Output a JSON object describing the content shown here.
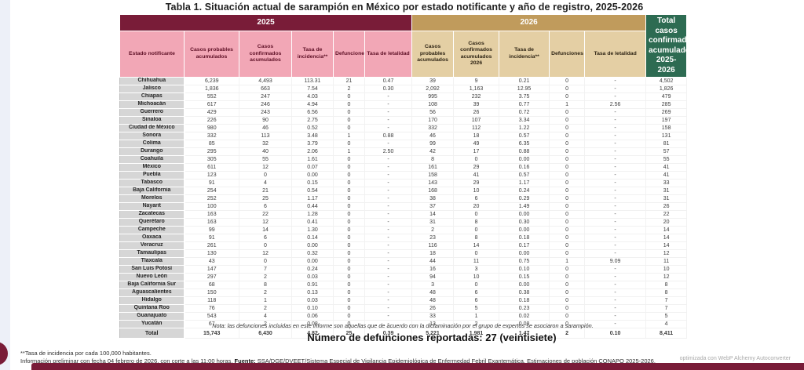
{
  "title": "Tabla 1. Situación actual de sarampión en México por estado notificante y año de registro, 2025-2026",
  "colors": {
    "maroon": "#791c38",
    "pink": "#f2a7b6",
    "tan": "#c09b5c",
    "tan_light": "#e4cfa4",
    "green": "#2d6b52",
    "gray_cell": "#d6d6d6"
  },
  "table": {
    "year_2025": "2025",
    "year_2026": "2026",
    "total_header": "Total casos confirmados acumulados 2025-2026",
    "col_headers": {
      "estado": "Estado notificante",
      "probables": "Casos probables acumulados",
      "confirmados": "Casos confirmados acumulados",
      "incidencia": "Tasa de incidencia**",
      "defunciones": "Defunciones",
      "letalidad": "Tasa de letalidad",
      "probables_2026": "Casos probables acumulados",
      "confirmados_2026": "Casos confirmados acumulados 2026",
      "incidencia_2026": "Tasa de incidencia**",
      "defunciones_2026": "Defunciones",
      "letalidad_2026": "Tasa de letalidad"
    },
    "rows": [
      {
        "estado": "Chihuahua",
        "c": [
          "6,239",
          "4,493",
          "113.31",
          "21",
          "0.47",
          "39",
          "9",
          "0.21",
          "0",
          "-",
          "4,502"
        ]
      },
      {
        "estado": "Jalisco",
        "c": [
          "1,836",
          "663",
          "7.54",
          "2",
          "0.30",
          "2,092",
          "1,163",
          "12.95",
          "0",
          "-",
          "1,826"
        ]
      },
      {
        "estado": "Chiapas",
        "c": [
          "552",
          "247",
          "4.03",
          "0",
          "-",
          "995",
          "232",
          "3.75",
          "0",
          "-",
          "479"
        ]
      },
      {
        "estado": "Michoacán",
        "c": [
          "617",
          "246",
          "4.94",
          "0",
          "-",
          "108",
          "39",
          "0.77",
          "1",
          "2.56",
          "285"
        ]
      },
      {
        "estado": "Guerrero",
        "c": [
          "429",
          "243",
          "6.56",
          "0",
          "-",
          "56",
          "26",
          "0.72",
          "0",
          "-",
          "269"
        ]
      },
      {
        "estado": "Sinaloa",
        "c": [
          "226",
          "90",
          "2.75",
          "0",
          "-",
          "170",
          "107",
          "3.34",
          "0",
          "-",
          "197"
        ]
      },
      {
        "estado": "Ciudad de México",
        "c": [
          "980",
          "46",
          "0.52",
          "0",
          "-",
          "332",
          "112",
          "1.22",
          "0",
          "-",
          "158"
        ]
      },
      {
        "estado": "Sonora",
        "c": [
          "332",
          "113",
          "3.48",
          "1",
          "0.88",
          "46",
          "18",
          "0.57",
          "0",
          "-",
          "131"
        ]
      },
      {
        "estado": "Colima",
        "c": [
          "85",
          "32",
          "3.79",
          "0",
          "-",
          "99",
          "49",
          "6.35",
          "0",
          "-",
          "81"
        ]
      },
      {
        "estado": "Durango",
        "c": [
          "295",
          "40",
          "2.06",
          "1",
          "2.50",
          "42",
          "17",
          "0.88",
          "0",
          "-",
          "57"
        ]
      },
      {
        "estado": "Coahuila",
        "c": [
          "305",
          "55",
          "1.61",
          "0",
          "-",
          "8",
          "0",
          "0.00",
          "0",
          "-",
          "55"
        ]
      },
      {
        "estado": "México",
        "c": [
          "611",
          "12",
          "0.07",
          "0",
          "-",
          "161",
          "29",
          "0.16",
          "0",
          "-",
          "41"
        ]
      },
      {
        "estado": "Puebla",
        "c": [
          "123",
          "0",
          "0.00",
          "0",
          "-",
          "158",
          "41",
          "0.57",
          "0",
          "-",
          "41"
        ]
      },
      {
        "estado": "Tabasco",
        "c": [
          "91",
          "4",
          "0.15",
          "0",
          "-",
          "143",
          "29",
          "1.17",
          "0",
          "-",
          "33"
        ]
      },
      {
        "estado": "Baja California",
        "c": [
          "254",
          "21",
          "0.54",
          "0",
          "-",
          "168",
          "10",
          "0.24",
          "0",
          "-",
          "31"
        ]
      },
      {
        "estado": "Morelos",
        "c": [
          "252",
          "25",
          "1.17",
          "0",
          "-",
          "38",
          "6",
          "0.29",
          "0",
          "-",
          "31"
        ]
      },
      {
        "estado": "Nayarit",
        "c": [
          "100",
          "6",
          "0.44",
          "0",
          "-",
          "37",
          "20",
          "1.49",
          "0",
          "-",
          "26"
        ]
      },
      {
        "estado": "Zacatecas",
        "c": [
          "163",
          "22",
          "1.28",
          "0",
          "-",
          "14",
          "0",
          "0.00",
          "0",
          "-",
          "22"
        ]
      },
      {
        "estado": "Querétaro",
        "c": [
          "163",
          "12",
          "0.41",
          "0",
          "-",
          "31",
          "8",
          "0.30",
          "0",
          "-",
          "20"
        ]
      },
      {
        "estado": "Campeche",
        "c": [
          "99",
          "14",
          "1.30",
          "0",
          "-",
          "2",
          "0",
          "0.00",
          "0",
          "-",
          "14"
        ]
      },
      {
        "estado": "Oaxaca",
        "c": [
          "91",
          "6",
          "0.14",
          "0",
          "-",
          "23",
          "8",
          "0.18",
          "0",
          "-",
          "14"
        ]
      },
      {
        "estado": "Veracruz",
        "c": [
          "261",
          "0",
          "0.00",
          "0",
          "-",
          "116",
          "14",
          "0.17",
          "0",
          "-",
          "14"
        ]
      },
      {
        "estado": "Tamaulipas",
        "c": [
          "130",
          "12",
          "0.32",
          "0",
          "-",
          "18",
          "0",
          "0.00",
          "0",
          "-",
          "12"
        ]
      },
      {
        "estado": "Tlaxcala",
        "c": [
          "43",
          "0",
          "0.00",
          "0",
          "-",
          "44",
          "11",
          "0.75",
          "1",
          "9.09",
          "11"
        ]
      },
      {
        "estado": "San Luis Potosí",
        "c": [
          "147",
          "7",
          "0.24",
          "0",
          "-",
          "16",
          "3",
          "0.10",
          "0",
          "-",
          "10"
        ]
      },
      {
        "estado": "Nuevo León",
        "c": [
          "297",
          "2",
          "0.03",
          "0",
          "-",
          "94",
          "10",
          "0.15",
          "0",
          "-",
          "12"
        ]
      },
      {
        "estado": "Baja California Sur",
        "c": [
          "68",
          "8",
          "0.91",
          "0",
          "-",
          "3",
          "0",
          "0.00",
          "0",
          "-",
          "8"
        ]
      },
      {
        "estado": "Aguascalientes",
        "c": [
          "150",
          "2",
          "0.13",
          "0",
          "-",
          "48",
          "6",
          "0.38",
          "0",
          "-",
          "8"
        ]
      },
      {
        "estado": "Hidalgo",
        "c": [
          "118",
          "1",
          "0.03",
          "0",
          "-",
          "48",
          "6",
          "0.18",
          "0",
          "-",
          "7"
        ]
      },
      {
        "estado": "Quintana Roo",
        "c": [
          "76",
          "2",
          "0.10",
          "0",
          "-",
          "26",
          "5",
          "0.23",
          "0",
          "-",
          "7"
        ]
      },
      {
        "estado": "Guanajuato",
        "c": [
          "543",
          "4",
          "0.06",
          "0",
          "-",
          "33",
          "1",
          "0.02",
          "0",
          "-",
          "5"
        ]
      },
      {
        "estado": "Yucatán",
        "c": [
          "67",
          "2",
          "0.08",
          "0",
          "-",
          "13",
          "2",
          "0.08",
          "0",
          "-",
          "4"
        ]
      }
    ],
    "total_row": {
      "estado": "Total",
      "c": [
        "15,743",
        "6,430",
        "4.82",
        "25",
        "0.39",
        "5,221",
        "1,981",
        "1.47",
        "2",
        "0.10",
        "8,411"
      ]
    }
  },
  "notes": {
    "nota": "Nota: las defunciones incluidas en este informe son aquellas que de acuerdo con la dictaminación por el grupo de expertos se asociaron a sarampión.",
    "deaths_line": "Número de defunciones reportadas: 27 (veintisiete)",
    "footnote_rate": "**Tasa de incidencia por cada 100,000 habitantes.",
    "preliminary": "Información preliminar con fecha 04 febrero de 2026, con corte a las 11:00 horas. ",
    "source_label": "Fuente:",
    "source_text": " SSA/DGE/DVEET/Sistema Especial de Vigilancia Epidemiológica de Enfermedad Febril Exantemática. Estimaciones de población CONAPO 2025-2026.",
    "watermark": "optimizada con WebP Alchemy Autoconverter"
  }
}
